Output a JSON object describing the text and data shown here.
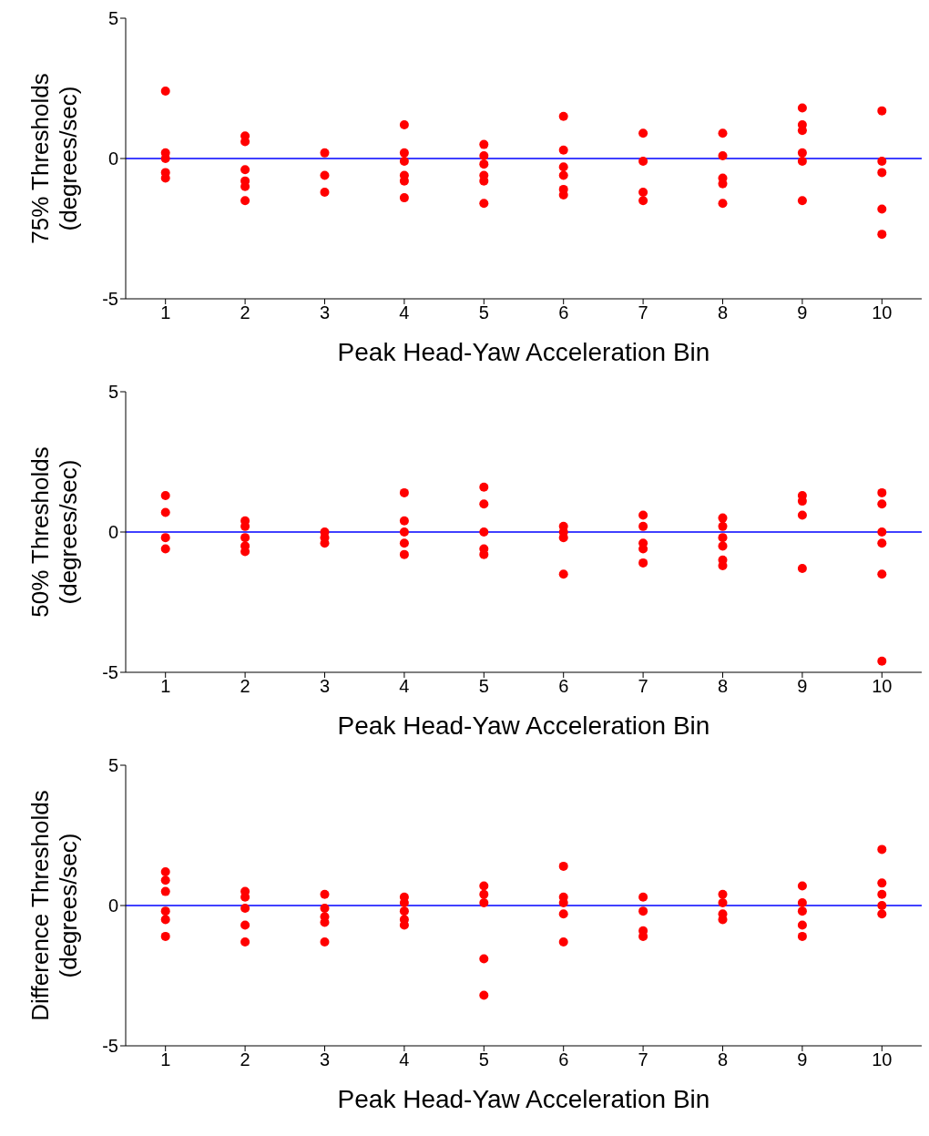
{
  "chart_data": [
    {
      "type": "scatter",
      "ylabel": "75% Thresholds\n(degrees/sec)",
      "xlabel": "Peak Head-Yaw Acceleration Bin",
      "xlim": [
        0.5,
        10.5
      ],
      "xticks": [
        1,
        2,
        3,
        4,
        5,
        6,
        7,
        8,
        9,
        10
      ],
      "ylim": [
        -5,
        5
      ],
      "yticks": [
        -5,
        0,
        5
      ],
      "grid": false,
      "legend": false,
      "marker": "circle",
      "ref_lines": [
        {
          "axis": "y",
          "value": 0,
          "color": "#0000ff"
        }
      ],
      "series": [
        {
          "color": "#ff0000",
          "x": [
            1,
            1,
            1,
            1,
            1,
            2,
            2,
            2,
            2,
            2,
            2,
            3,
            3,
            3,
            4,
            4,
            4,
            4,
            4,
            4,
            5,
            5,
            5,
            5,
            5,
            5,
            6,
            6,
            6,
            6,
            6,
            6,
            7,
            7,
            7,
            7,
            8,
            8,
            8,
            8,
            8,
            9,
            9,
            9,
            9,
            9,
            9,
            10,
            10,
            10,
            10,
            10
          ],
          "values": [
            2.4,
            0.2,
            0,
            -0.5,
            -0.7,
            0.8,
            0.6,
            -0.4,
            -0.8,
            -1.0,
            -1.5,
            0.2,
            -0.6,
            -1.2,
            1.2,
            0.2,
            -0.1,
            -0.6,
            -0.8,
            -1.4,
            0.5,
            0.1,
            -0.2,
            -0.6,
            -0.8,
            -1.6,
            1.5,
            0.3,
            -0.3,
            -0.6,
            -1.1,
            -1.3,
            0.9,
            -0.1,
            -1.2,
            -1.5,
            0.9,
            0.1,
            -0.7,
            -0.9,
            -1.6,
            1.8,
            1.2,
            1.0,
            0.2,
            -0.1,
            -1.5,
            1.7,
            -0.1,
            -0.5,
            -1.8,
            -2.7
          ]
        }
      ]
    },
    {
      "type": "scatter",
      "ylabel": "50% Thresholds\n(degrees/sec)",
      "xlabel": "Peak Head-Yaw Acceleration Bin",
      "xlim": [
        0.5,
        10.5
      ],
      "xticks": [
        1,
        2,
        3,
        4,
        5,
        6,
        7,
        8,
        9,
        10
      ],
      "ylim": [
        -5,
        5
      ],
      "yticks": [
        -5,
        0,
        5
      ],
      "grid": false,
      "legend": false,
      "marker": "circle",
      "ref_lines": [
        {
          "axis": "y",
          "value": 0,
          "color": "#0000ff"
        }
      ],
      "series": [
        {
          "color": "#ff0000",
          "x": [
            1,
            1,
            1,
            1,
            2,
            2,
            2,
            2,
            2,
            3,
            3,
            3,
            4,
            4,
            4,
            4,
            4,
            5,
            5,
            5,
            5,
            5,
            6,
            6,
            6,
            6,
            7,
            7,
            7,
            7,
            7,
            8,
            8,
            8,
            8,
            8,
            8,
            9,
            9,
            9,
            9,
            10,
            10,
            10,
            10,
            10,
            10
          ],
          "values": [
            1.3,
            0.7,
            -0.2,
            -0.6,
            0.4,
            0.2,
            -0.2,
            -0.5,
            -0.7,
            0,
            -0.2,
            -0.4,
            1.4,
            0.4,
            0,
            -0.4,
            -0.8,
            1.6,
            1.0,
            0,
            -0.6,
            -0.8,
            0.2,
            0,
            -0.2,
            -1.5,
            0.6,
            0.2,
            -0.4,
            -0.6,
            -1.1,
            0.5,
            0.2,
            -0.2,
            -0.5,
            -1.0,
            -1.2,
            1.3,
            1.1,
            0.6,
            -1.3,
            1.4,
            1.0,
            0,
            -0.4,
            -1.5,
            -4.6
          ]
        }
      ]
    },
    {
      "type": "scatter",
      "ylabel": "Difference Thresholds\n(degrees/sec)",
      "xlabel": "Peak Head-Yaw Acceleration Bin",
      "xlim": [
        0.5,
        10.5
      ],
      "xticks": [
        1,
        2,
        3,
        4,
        5,
        6,
        7,
        8,
        9,
        10
      ],
      "ylim": [
        -5,
        5
      ],
      "yticks": [
        -5,
        0,
        5
      ],
      "grid": false,
      "legend": false,
      "marker": "circle",
      "ref_lines": [
        {
          "axis": "y",
          "value": 0,
          "color": "#0000ff"
        }
      ],
      "series": [
        {
          "color": "#ff0000",
          "x": [
            1,
            1,
            1,
            1,
            1,
            1,
            2,
            2,
            2,
            2,
            2,
            3,
            3,
            3,
            3,
            3,
            4,
            4,
            4,
            4,
            4,
            5,
            5,
            5,
            5,
            5,
            6,
            6,
            6,
            6,
            6,
            7,
            7,
            7,
            7,
            8,
            8,
            8,
            8,
            9,
            9,
            9,
            9,
            9,
            10,
            10,
            10,
            10,
            10
          ],
          "values": [
            1.2,
            0.9,
            0.5,
            -0.2,
            -0.5,
            -1.1,
            0.5,
            0.3,
            -0.1,
            -0.7,
            -1.3,
            0.4,
            -0.1,
            -0.4,
            -0.6,
            -1.3,
            0.3,
            0.1,
            -0.2,
            -0.5,
            -0.7,
            0.7,
            0.4,
            0.1,
            -1.9,
            -3.2,
            1.4,
            0.3,
            0.1,
            -0.3,
            -1.3,
            0.3,
            -0.2,
            -0.9,
            -1.1,
            0.4,
            0.1,
            -0.3,
            -0.5,
            0.7,
            0.1,
            -0.2,
            -0.7,
            -1.1,
            2.0,
            0.8,
            0.4,
            0,
            -0.3
          ]
        }
      ]
    }
  ]
}
